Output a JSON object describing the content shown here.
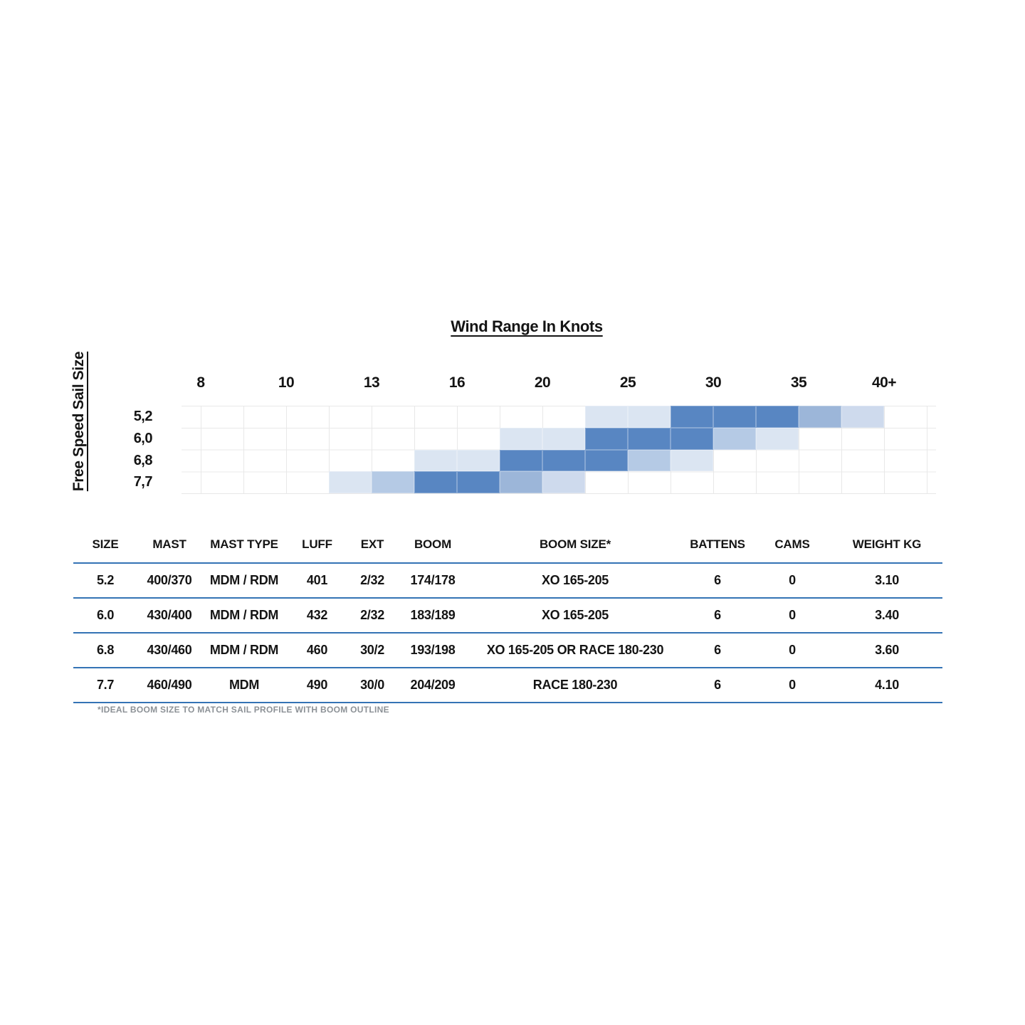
{
  "palette": {
    "background": "#FFFFFF",
    "text": "#141414",
    "gridline": "#E8E8E8",
    "table_line": "#3473B5",
    "footnote_gray": "#8C9196"
  },
  "chart_data": {
    "type": "heatmap",
    "title": "Wind Range In Knots",
    "ylabel": "Free Speed Sail Size",
    "x_tick_labels": [
      "8",
      "10",
      "13",
      "16",
      "20",
      "25",
      "30",
      "35",
      "40+"
    ],
    "x_tick_values_knots": [
      8,
      10,
      13,
      16,
      20,
      25,
      30,
      35,
      40
    ],
    "grid": true,
    "legend_position": "none",
    "shade_colors": {
      "L1": "#DBE5F2",
      "L15": "#CEDAED",
      "L2": "#B5CAE5",
      "M": "#9CB6D9",
      "D": "#5886C2"
    },
    "shade_meaning": {
      "D": "ideal wind range",
      "M": "strong usable range",
      "L2": "usable range",
      "L15": "marginal range",
      "L1": "outer range"
    },
    "rows": [
      {
        "label": "5,2",
        "wind_range_knots": [
          22.5,
          40
        ],
        "core_range_knots": [
          27.5,
          35
        ],
        "cells": [
          {
            "col": 9,
            "shade": "L1"
          },
          {
            "col": 10,
            "shade": "L1"
          },
          {
            "col": 11,
            "shade": "D"
          },
          {
            "col": 12,
            "shade": "D"
          },
          {
            "col": 13,
            "shade": "D"
          },
          {
            "col": 14,
            "shade": "M"
          },
          {
            "col": 15,
            "shade": "L15"
          }
        ]
      },
      {
        "label": "6,0",
        "wind_range_knots": [
          18,
          35
        ],
        "core_range_knots": [
          22.5,
          30
        ],
        "cells": [
          {
            "col": 7,
            "shade": "L1"
          },
          {
            "col": 8,
            "shade": "L1"
          },
          {
            "col": 9,
            "shade": "D"
          },
          {
            "col": 10,
            "shade": "D"
          },
          {
            "col": 11,
            "shade": "D"
          },
          {
            "col": 12,
            "shade": "L2"
          },
          {
            "col": 13,
            "shade": "L1"
          }
        ]
      },
      {
        "label": "6,8",
        "wind_range_knots": [
          14.5,
          27.5
        ],
        "core_range_knots": [
          18,
          25
        ],
        "cells": [
          {
            "col": 5,
            "shade": "L1"
          },
          {
            "col": 6,
            "shade": "L1"
          },
          {
            "col": 7,
            "shade": "D"
          },
          {
            "col": 8,
            "shade": "D"
          },
          {
            "col": 9,
            "shade": "D"
          },
          {
            "col": 10,
            "shade": "L2"
          },
          {
            "col": 11,
            "shade": "L1"
          }
        ]
      },
      {
        "label": "7,7",
        "wind_range_knots": [
          11.5,
          22.5
        ],
        "core_range_knots": [
          14.5,
          18
        ],
        "cells": [
          {
            "col": 3,
            "shade": "L1"
          },
          {
            "col": 4,
            "shade": "L2"
          },
          {
            "col": 5,
            "shade": "D"
          },
          {
            "col": 6,
            "shade": "D"
          },
          {
            "col": 7,
            "shade": "M"
          },
          {
            "col": 8,
            "shade": "L15"
          }
        ]
      }
    ]
  },
  "table": {
    "headers": [
      "SIZE",
      "MAST",
      "MAST TYPE",
      "LUFF",
      "EXT",
      "BOOM",
      "BOOM SIZE*",
      "BATTENS",
      "CAMS",
      "WEIGHT KG"
    ],
    "rows": [
      [
        "5.2",
        "400/370",
        "MDM / RDM",
        "401",
        "2/32",
        "174/178",
        "XO 165-205",
        "6",
        "0",
        "3.10"
      ],
      [
        "6.0",
        "430/400",
        "MDM / RDM",
        "432",
        "2/32",
        "183/189",
        "XO 165-205",
        "6",
        "0",
        "3.40"
      ],
      [
        "6.8",
        "430/460",
        "MDM / RDM",
        "460",
        "30/2",
        "193/198",
        "XO 165-205 OR RACE 180-230",
        "6",
        "0",
        "3.60"
      ],
      [
        "7.7",
        "460/490",
        "MDM",
        "490",
        "30/0",
        "204/209",
        "RACE 180-230",
        "6",
        "0",
        "4.10"
      ]
    ],
    "footnote": "*IDEAL BOOM SIZE TO MATCH SAIL PROFILE WITH BOOM OUTLINE"
  }
}
